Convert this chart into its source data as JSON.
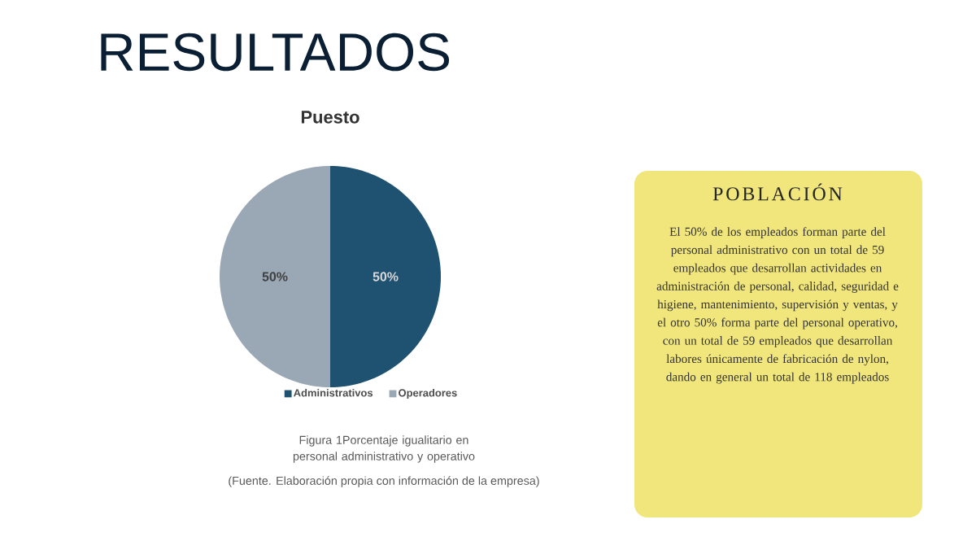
{
  "chart_data": [
    {
      "type": "pie",
      "title": "Puesto",
      "categories": [
        "Administrativos",
        "Operadores"
      ],
      "values": [
        50,
        50
      ],
      "colors": [
        "#1f5170",
        "#9aa8b5"
      ],
      "value_labels": [
        "50%",
        "50%"
      ],
      "legend": "bottom",
      "annotations": [
        "RESULTADOS",
        "Figura 1Porcentaje igualitario en personal administrativo y operativo",
        "(Fuente. Elaboración propia con información de la empresa)"
      ]
    },
    {
      "type": "other",
      "title": "POBLACIÓN",
      "annotations": [
        "El 50% de los empleados forman parte del personal administrativo con un total de 59 empleados que desarrollan actividades en administración de personal, calidad, seguridad e higiene, mantenimiento, supervisión y ventas, y el otro 50% forma parte del personal operativo, con un total de 59 empleados que desarrollan labores únicamente de fabricación de nylon, dando en general un total de 118 empleados"
      ]
    }
  ]
}
